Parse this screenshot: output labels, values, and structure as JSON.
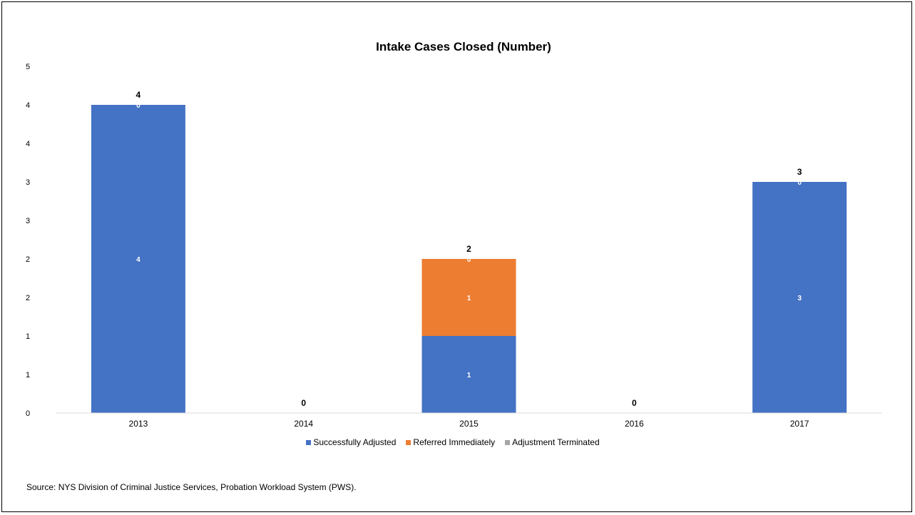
{
  "chart_data": {
    "type": "bar",
    "stacked": true,
    "title": "Intake Cases Closed (Number)",
    "categories": [
      "2013",
      "2014",
      "2015",
      "2016",
      "2017"
    ],
    "series": [
      {
        "name": "Successfully Adjusted",
        "color": "#4472c4",
        "values": [
          4,
          0,
          1,
          0,
          3
        ],
        "labels": [
          "4",
          "",
          "1",
          "",
          "3"
        ]
      },
      {
        "name": "Referred Immediately",
        "color": "#ed7d31",
        "values": [
          0,
          0,
          1,
          0,
          0
        ],
        "labels": [
          "",
          "",
          "1",
          "",
          ""
        ]
      },
      {
        "name": "Adjustment Terminated",
        "color": "#a5a5a5",
        "values": [
          0,
          0,
          0,
          0,
          0
        ],
        "labels": [
          "0",
          "",
          "0",
          "",
          "0"
        ]
      }
    ],
    "totals": [
      "4",
      "0",
      "2",
      "0",
      "3"
    ],
    "ylim": [
      0,
      4.5
    ],
    "ytick_values": [
      0,
      0.5,
      1,
      1.5,
      2,
      2.5,
      3,
      3.5,
      4,
      4.5
    ],
    "ytick_labels": [
      "0",
      "1",
      "1",
      "2",
      "2",
      "3",
      "3",
      "4",
      "4",
      "5"
    ],
    "xlabel": "",
    "ylabel": "",
    "grid": false,
    "legend_position": "bottom"
  },
  "source_note": "Source: NYS Division of Criminal Justice Services, Probation Workload System (PWS)."
}
